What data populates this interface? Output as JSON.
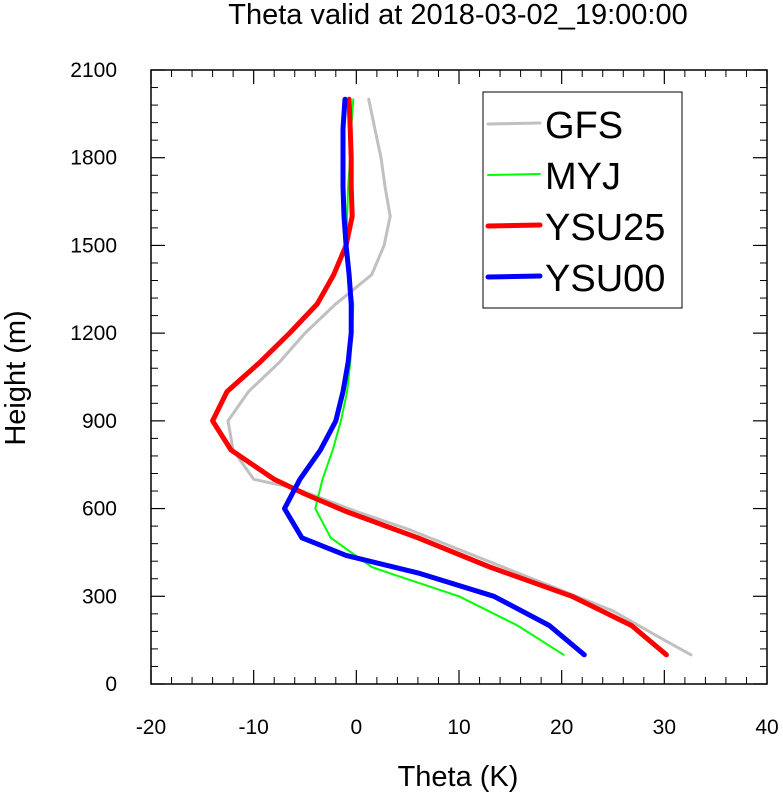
{
  "chart_data": {
    "type": "line",
    "title": "Theta valid at 2018-03-02_19:00:00",
    "xlabel": "Theta (K)",
    "ylabel": "Height (m)",
    "xlim": [
      -20,
      40
    ],
    "ylim": [
      0,
      2100
    ],
    "xticks": [
      -20,
      -10,
      0,
      10,
      20,
      30,
      40
    ],
    "yticks": [
      0,
      300,
      600,
      900,
      1200,
      1500,
      1800,
      2100
    ],
    "xtick_labels": [
      "-20",
      "-10",
      "0",
      "10",
      "20",
      "30",
      "40"
    ],
    "ytick_labels": [
      "0",
      "300",
      "600",
      "900",
      "1200",
      "1500",
      "1800",
      "2100"
    ],
    "legend_position": "top-right",
    "grid": false,
    "series": [
      {
        "name": "GFS",
        "color": "#c0c0c0",
        "points": [
          [
            32.6,
            100
          ],
          [
            30,
            150
          ],
          [
            25,
            250
          ],
          [
            20,
            320
          ],
          [
            15,
            390
          ],
          [
            10,
            460
          ],
          [
            5,
            530
          ],
          [
            0,
            590
          ],
          [
            -3,
            630
          ],
          [
            -6,
            670
          ],
          [
            -10,
            700
          ],
          [
            -12,
            800
          ],
          [
            -12.5,
            900
          ],
          [
            -10.5,
            1000
          ],
          [
            -7.5,
            1100
          ],
          [
            -5,
            1200
          ],
          [
            -2,
            1300
          ],
          [
            1.5,
            1400
          ],
          [
            2.7,
            1500
          ],
          [
            3.3,
            1600
          ],
          [
            2.8,
            1700
          ],
          [
            2.4,
            1800
          ],
          [
            1.8,
            1900
          ],
          [
            1.2,
            2000
          ]
        ]
      },
      {
        "name": "MYJ",
        "color": "#00ff00",
        "points": [
          [
            20.2,
            100
          ],
          [
            15.7,
            200
          ],
          [
            10,
            300
          ],
          [
            4,
            370
          ],
          [
            1.5,
            400
          ],
          [
            -2.5,
            500
          ],
          [
            -4,
            600
          ],
          [
            -3.3,
            700
          ],
          [
            -2.3,
            800
          ],
          [
            -1.5,
            900
          ],
          [
            -0.9,
            1000
          ],
          [
            -0.6,
            1100
          ],
          [
            -0.4,
            1200
          ],
          [
            -0.3,
            1300
          ],
          [
            -0.7,
            1400
          ],
          [
            -0.9,
            1500
          ],
          [
            -0.9,
            1600
          ],
          [
            -0.8,
            1700
          ],
          [
            -0.6,
            1800
          ],
          [
            -0.5,
            1900
          ],
          [
            -0.3,
            2000
          ]
        ]
      },
      {
        "name": "YSU25",
        "color": "#ff0000",
        "points": [
          [
            30.2,
            100
          ],
          [
            26.8,
            200
          ],
          [
            21,
            300
          ],
          [
            13,
            400
          ],
          [
            6,
            500
          ],
          [
            -1,
            590
          ],
          [
            -5,
            650
          ],
          [
            -8,
            700
          ],
          [
            -12.2,
            800
          ],
          [
            -14,
            900
          ],
          [
            -12.6,
            1000
          ],
          [
            -9.4,
            1100
          ],
          [
            -6.5,
            1200
          ],
          [
            -3.8,
            1300
          ],
          [
            -2.2,
            1400
          ],
          [
            -1,
            1500
          ],
          [
            -0.4,
            1600
          ],
          [
            -0.5,
            1700
          ],
          [
            -0.5,
            1800
          ],
          [
            -0.6,
            1900
          ],
          [
            -0.7,
            2000
          ]
        ]
      },
      {
        "name": "YSU00",
        "color": "#0000ff",
        "points": [
          [
            22.2,
            100
          ],
          [
            18.8,
            200
          ],
          [
            13.4,
            300
          ],
          [
            6,
            380
          ],
          [
            -1,
            440
          ],
          [
            -5.3,
            500
          ],
          [
            -7,
            600
          ],
          [
            -5.5,
            700
          ],
          [
            -3.5,
            800
          ],
          [
            -2,
            900
          ],
          [
            -1.3,
            1000
          ],
          [
            -0.8,
            1100
          ],
          [
            -0.5,
            1200
          ],
          [
            -0.5,
            1300
          ],
          [
            -0.7,
            1400
          ],
          [
            -1,
            1500
          ],
          [
            -1.2,
            1600
          ],
          [
            -1.3,
            1700
          ],
          [
            -1.3,
            1800
          ],
          [
            -1.3,
            1900
          ],
          [
            -1.2,
            1950
          ],
          [
            -1.1,
            2000
          ]
        ]
      }
    ]
  }
}
